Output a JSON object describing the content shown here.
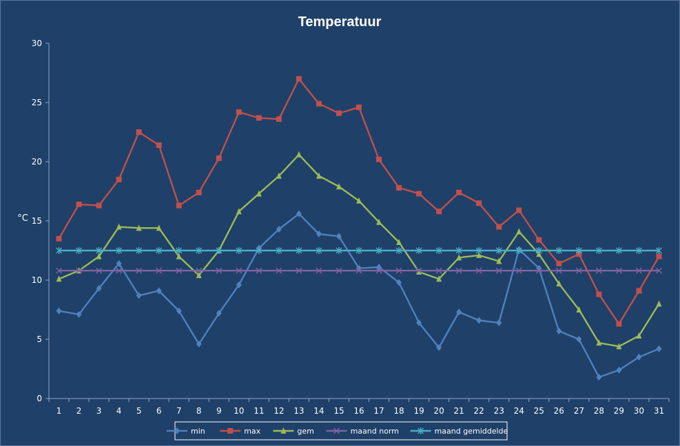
{
  "chart_data": {
    "type": "line",
    "title": "Temperatuur",
    "xlabel": "",
    "ylabel": "°C",
    "ylim": [
      0,
      30
    ],
    "yticks": [
      0,
      5,
      10,
      15,
      20,
      25,
      30
    ],
    "categories": [
      "1",
      "2",
      "3",
      "4",
      "5",
      "6",
      "7",
      "8",
      "9",
      "10",
      "11",
      "12",
      "13",
      "14",
      "15",
      "16",
      "17",
      "18",
      "19",
      "20",
      "21",
      "22",
      "23",
      "24",
      "25",
      "26",
      "27",
      "28",
      "29",
      "30",
      "31"
    ],
    "legend_position": "bottom",
    "grid": false,
    "series": [
      {
        "name": "min",
        "color": "#4f81bd",
        "marker": "diamond",
        "values": [
          7.4,
          7.1,
          9.3,
          11.4,
          8.7,
          9.1,
          7.4,
          4.6,
          7.2,
          9.6,
          12.7,
          14.3,
          15.6,
          13.9,
          13.7,
          11.0,
          11.1,
          9.8,
          6.4,
          4.3,
          7.3,
          6.6,
          6.4,
          12.6,
          11.0,
          5.7,
          5.0,
          1.8,
          2.4,
          3.5,
          4.2
        ]
      },
      {
        "name": "max",
        "color": "#c0504d",
        "marker": "square",
        "values": [
          13.5,
          16.4,
          16.3,
          18.5,
          22.5,
          21.4,
          16.3,
          17.4,
          20.3,
          24.2,
          23.7,
          23.6,
          27.0,
          24.9,
          24.1,
          24.6,
          20.2,
          17.8,
          17.3,
          15.8,
          17.4,
          16.5,
          14.5,
          15.9,
          13.4,
          11.4,
          12.2,
          8.8,
          6.3,
          9.1,
          12.0
        ]
      },
      {
        "name": "gem",
        "color": "#9bbb59",
        "marker": "triangle",
        "values": [
          10.1,
          10.8,
          12.0,
          14.5,
          14.4,
          14.4,
          12.0,
          10.4,
          12.5,
          15.8,
          17.3,
          18.8,
          20.6,
          18.8,
          17.9,
          16.7,
          14.9,
          13.2,
          10.7,
          10.1,
          11.9,
          12.1,
          11.6,
          14.1,
          12.2,
          9.7,
          7.5,
          4.7,
          4.4,
          5.3,
          8.0
        ]
      },
      {
        "name": "maand norm",
        "color": "#8064a2",
        "marker": "x",
        "values": [
          10.8,
          10.8,
          10.8,
          10.8,
          10.8,
          10.8,
          10.8,
          10.8,
          10.8,
          10.8,
          10.8,
          10.8,
          10.8,
          10.8,
          10.8,
          10.8,
          10.8,
          10.8,
          10.8,
          10.8,
          10.8,
          10.8,
          10.8,
          10.8,
          10.8,
          10.8,
          10.8,
          10.8,
          10.8,
          10.8,
          10.8
        ]
      },
      {
        "name": "maand gemiddelde",
        "color": "#4bacc6",
        "marker": "star",
        "values": [
          12.5,
          12.5,
          12.5,
          12.5,
          12.5,
          12.5,
          12.5,
          12.5,
          12.5,
          12.5,
          12.5,
          12.5,
          12.5,
          12.5,
          12.5,
          12.5,
          12.5,
          12.5,
          12.5,
          12.5,
          12.5,
          12.5,
          12.5,
          12.5,
          12.5,
          12.5,
          12.5,
          12.5,
          12.5,
          12.5,
          12.5
        ]
      }
    ]
  }
}
